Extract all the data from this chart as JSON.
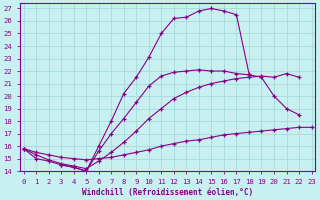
{
  "bg_color": "#c8f0f0",
  "line_color": "#880088",
  "grid_color": "#aadddd",
  "xlabel": "Windchill (Refroidissement éolien,°C)",
  "series": [
    {
      "x": [
        3,
        4,
        5,
        6,
        7,
        8,
        9,
        10,
        11,
        12,
        13,
        14,
        15,
        16,
        17,
        18,
        19,
        20,
        21,
        22,
        23
      ],
      "y": [
        14.5,
        14.3,
        14.0,
        16.0,
        18.0,
        20.2,
        21.5,
        23.1,
        25.0,
        26.2,
        26.3,
        26.8,
        27.0,
        26.8,
        26.5,
        21.8,
        null,
        null,
        null,
        null,
        null
      ]
    },
    {
      "x": [
        0,
        1,
        2,
        3,
        4,
        5,
        6,
        7,
        8,
        9,
        10,
        11,
        12,
        13,
        14,
        15,
        16,
        17,
        18,
        19,
        20,
        21,
        22,
        23
      ],
      "y": [
        15.8,
        15.0,
        14.8,
        14.5,
        14.3,
        14.0,
        15.6,
        17.0,
        18.2,
        19.5,
        20.8,
        21.6,
        21.9,
        22.0,
        22.1,
        22.0,
        22.0,
        21.8,
        21.7,
        21.5,
        20.0,
        19.0,
        18.5,
        null
      ]
    },
    {
      "x": [
        0,
        1,
        2,
        3,
        4,
        5,
        6,
        7,
        8,
        9,
        10,
        11,
        12,
        13,
        14,
        15,
        16,
        17,
        18,
        19,
        20,
        21,
        22,
        23
      ],
      "y": [
        15.8,
        15.5,
        15.3,
        15.1,
        15.0,
        14.9,
        15.0,
        15.1,
        15.3,
        15.5,
        15.7,
        16.0,
        16.2,
        16.4,
        16.5,
        16.7,
        16.9,
        17.0,
        17.1,
        17.2,
        17.3,
        17.4,
        17.5,
        17.5
      ]
    },
    {
      "x": [
        0,
        1,
        2,
        3,
        4,
        5,
        6,
        7,
        8,
        9,
        10,
        11,
        12,
        13,
        14,
        15,
        16,
        17,
        18,
        19,
        20,
        21,
        22,
        23
      ],
      "y": [
        15.8,
        15.3,
        14.9,
        14.6,
        14.4,
        14.2,
        14.8,
        15.5,
        16.3,
        17.2,
        18.2,
        19.0,
        19.8,
        20.3,
        20.7,
        21.0,
        21.2,
        21.4,
        21.5,
        21.6,
        21.5,
        21.8,
        21.5,
        null
      ]
    }
  ],
  "ylim": [
    14,
    27.4
  ],
  "xlim": [
    -0.3,
    23.3
  ],
  "yticks": [
    14,
    15,
    16,
    17,
    18,
    19,
    20,
    21,
    22,
    23,
    24,
    25,
    26,
    27
  ],
  "xticks": [
    0,
    1,
    2,
    3,
    4,
    5,
    6,
    7,
    8,
    9,
    10,
    11,
    12,
    13,
    14,
    15,
    16,
    17,
    18,
    19,
    20,
    21,
    22,
    23
  ]
}
